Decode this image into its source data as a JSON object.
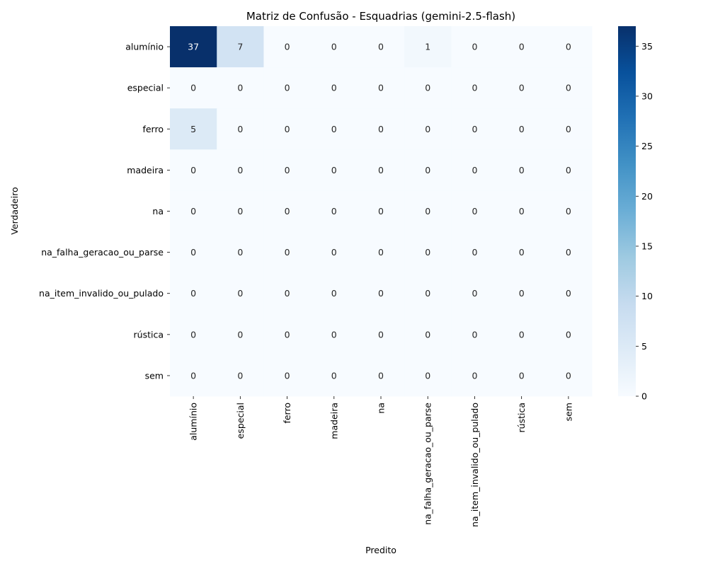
{
  "chart_data": {
    "type": "heatmap",
    "title": "Matriz de Confusão - Esquadrias (gemini-2.5-flash)",
    "xlabel": "Predito",
    "ylabel": "Verdadeiro",
    "x_categories": [
      "alumínio",
      "especial",
      "ferro",
      "madeira",
      "na",
      "na_falha_geracao_ou_parse",
      "na_item_invalido_ou_pulado",
      "rústica",
      "sem"
    ],
    "y_categories": [
      "alumínio",
      "especial",
      "ferro",
      "madeira",
      "na",
      "na_falha_geracao_ou_parse",
      "na_item_invalido_ou_pulado",
      "rústica",
      "sem"
    ],
    "values": [
      [
        37,
        7,
        0,
        0,
        0,
        1,
        0,
        0,
        0
      ],
      [
        0,
        0,
        0,
        0,
        0,
        0,
        0,
        0,
        0
      ],
      [
        5,
        0,
        0,
        0,
        0,
        0,
        0,
        0,
        0
      ],
      [
        0,
        0,
        0,
        0,
        0,
        0,
        0,
        0,
        0
      ],
      [
        0,
        0,
        0,
        0,
        0,
        0,
        0,
        0,
        0
      ],
      [
        0,
        0,
        0,
        0,
        0,
        0,
        0,
        0,
        0
      ],
      [
        0,
        0,
        0,
        0,
        0,
        0,
        0,
        0,
        0
      ],
      [
        0,
        0,
        0,
        0,
        0,
        0,
        0,
        0,
        0
      ],
      [
        0,
        0,
        0,
        0,
        0,
        0,
        0,
        0,
        0
      ]
    ],
    "colormap": "Blues",
    "colorbar": {
      "range": [
        0,
        37
      ],
      "ticks": [
        0,
        5,
        10,
        15,
        20,
        25,
        30,
        35
      ]
    },
    "annotations": true
  }
}
